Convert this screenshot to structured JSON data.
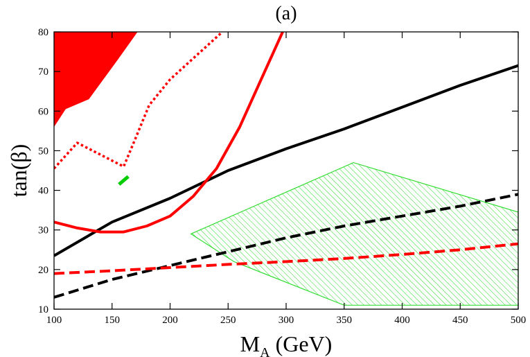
{
  "chart_data": {
    "type": "line",
    "panel_label": "(a)",
    "xlabel": {
      "main": "M",
      "sub": "A",
      "unit": " (GeV)"
    },
    "ylabel": "tan(β)",
    "xlim": [
      100,
      500
    ],
    "ylim": [
      10,
      80
    ],
    "x_ticks": [
      100,
      150,
      200,
      250,
      300,
      350,
      400,
      450,
      500
    ],
    "y_ticks": [
      10,
      20,
      30,
      40,
      50,
      60,
      70,
      80
    ],
    "colors": {
      "red": "#ff0000",
      "black": "#000000",
      "green": "#00cc00",
      "hatch": "#33dd33"
    },
    "regions": [
      {
        "id": "red-excluded-region",
        "style": "filled",
        "color": "#ff0000",
        "points": [
          [
            100,
            80
          ],
          [
            172,
            80
          ],
          [
            155,
            73
          ],
          [
            130,
            63
          ],
          [
            110,
            60.5
          ],
          [
            100,
            56
          ]
        ]
      },
      {
        "id": "green-hatched-region",
        "style": "hatched",
        "color": "#33dd33",
        "points": [
          [
            218,
            29
          ],
          [
            358,
            47
          ],
          [
            500,
            34.5
          ],
          [
            500,
            11
          ],
          [
            350,
            11
          ],
          [
            255,
            22
          ]
        ]
      }
    ],
    "series": [
      {
        "id": "black-solid-curve",
        "style": "solid",
        "color": "#000000",
        "points": [
          [
            100,
            23.5
          ],
          [
            150,
            32
          ],
          [
            200,
            38
          ],
          [
            250,
            45
          ],
          [
            300,
            50.5
          ],
          [
            350,
            55.5
          ],
          [
            400,
            61
          ],
          [
            450,
            66.5
          ],
          [
            500,
            71.5
          ]
        ]
      },
      {
        "id": "black-dashed-curve",
        "style": "dashed",
        "color": "#000000",
        "points": [
          [
            100,
            13
          ],
          [
            150,
            17.5
          ],
          [
            200,
            21
          ],
          [
            250,
            24.5
          ],
          [
            300,
            28
          ],
          [
            350,
            31
          ],
          [
            400,
            33.5
          ],
          [
            450,
            36
          ],
          [
            500,
            39
          ]
        ]
      },
      {
        "id": "red-solid-curve",
        "style": "solid",
        "color": "#ff0000",
        "points": [
          [
            100,
            32
          ],
          [
            120,
            30.5
          ],
          [
            140,
            29.5
          ],
          [
            160,
            29.5
          ],
          [
            180,
            31
          ],
          [
            200,
            33.5
          ],
          [
            220,
            38.5
          ],
          [
            240,
            45.5
          ],
          [
            260,
            56
          ],
          [
            280,
            69
          ],
          [
            297,
            80
          ]
        ]
      },
      {
        "id": "red-dashed-curve",
        "style": "dashed",
        "color": "#ff0000",
        "points": [
          [
            100,
            19
          ],
          [
            150,
            19.7
          ],
          [
            200,
            20.5
          ],
          [
            250,
            21.3
          ],
          [
            300,
            22
          ],
          [
            350,
            22.8
          ],
          [
            400,
            23.8
          ],
          [
            450,
            25
          ],
          [
            500,
            26.5
          ]
        ]
      },
      {
        "id": "red-dotted-curve",
        "style": "dotted",
        "color": "#ff0000",
        "points": [
          [
            100,
            45.5
          ],
          [
            120,
            52
          ],
          [
            140,
            49
          ],
          [
            160,
            46
          ],
          [
            170,
            53
          ],
          [
            182,
            61.5
          ],
          [
            200,
            68
          ],
          [
            230,
            76
          ],
          [
            245,
            80
          ]
        ]
      },
      {
        "id": "green-short-segment",
        "style": "solid-thick",
        "color": "#00cc00",
        "points": [
          [
            156,
            41.5
          ],
          [
            164,
            43.5
          ]
        ]
      }
    ]
  }
}
